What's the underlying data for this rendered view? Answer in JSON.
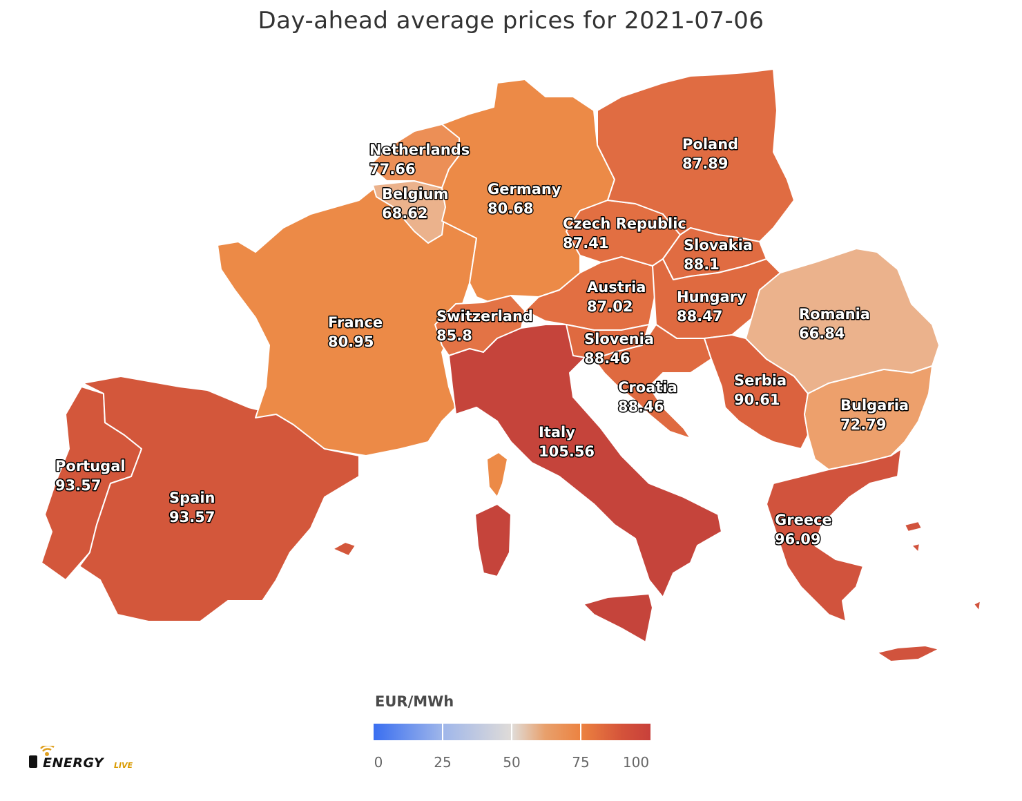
{
  "title": "Day-ahead average prices for 2021-07-06",
  "legend": {
    "title": "EUR/MWh",
    "ticks": [
      "0",
      "25",
      "50",
      "75",
      "100"
    ],
    "min": 0,
    "max": 100,
    "colors": {
      "low": "#3a6ff0",
      "mid": "#e0dcd8",
      "high": "#c8403a"
    }
  },
  "logo": {
    "word": "ENERGY",
    "suffix": "LIVE"
  },
  "countries": [
    {
      "id": "portugal",
      "name": "Portugal",
      "price": "93.57",
      "color": "#d3573b"
    },
    {
      "id": "spain",
      "name": "Spain",
      "price": "93.57",
      "color": "#d3573b"
    },
    {
      "id": "france",
      "name": "France",
      "price": "80.95",
      "color": "#ec8a47"
    },
    {
      "id": "belgium",
      "name": "Belgium",
      "price": "68.62",
      "color": "#ebb28c"
    },
    {
      "id": "netherlands",
      "name": "Netherlands",
      "price": "77.66",
      "color": "#ec8f56"
    },
    {
      "id": "germany",
      "name": "Germany",
      "price": "80.68",
      "color": "#ec8a47"
    },
    {
      "id": "switzerland",
      "name": "Switzerland",
      "price": "85.8",
      "color": "#e37345"
    },
    {
      "id": "italy",
      "name": "Italy",
      "price": "105.56",
      "color": "#c5443b"
    },
    {
      "id": "austria",
      "name": "Austria",
      "price": "87.02",
      "color": "#e26f42"
    },
    {
      "id": "czech",
      "name": "Czech Republic",
      "price": "87.41",
      "color": "#e26f42"
    },
    {
      "id": "poland",
      "name": "Poland",
      "price": "87.89",
      "color": "#e06c42"
    },
    {
      "id": "slovakia",
      "name": "Slovakia",
      "price": "88.1",
      "color": "#e06c42"
    },
    {
      "id": "hungary",
      "name": "Hungary",
      "price": "88.47",
      "color": "#df6a40"
    },
    {
      "id": "slovenia",
      "name": "Slovenia",
      "price": "88.46",
      "color": "#df6a40"
    },
    {
      "id": "croatia",
      "name": "Croatia",
      "price": "88.46",
      "color": "#df6a40"
    },
    {
      "id": "serbia",
      "name": "Serbia",
      "price": "90.61",
      "color": "#db623e"
    },
    {
      "id": "romania",
      "name": "Romania",
      "price": "66.84",
      "color": "#ebb28c"
    },
    {
      "id": "bulgaria",
      "name": "Bulgaria",
      "price": "72.79",
      "color": "#eda06c"
    },
    {
      "id": "greece",
      "name": "Greece",
      "price": "96.09",
      "color": "#d1533d"
    }
  ]
}
